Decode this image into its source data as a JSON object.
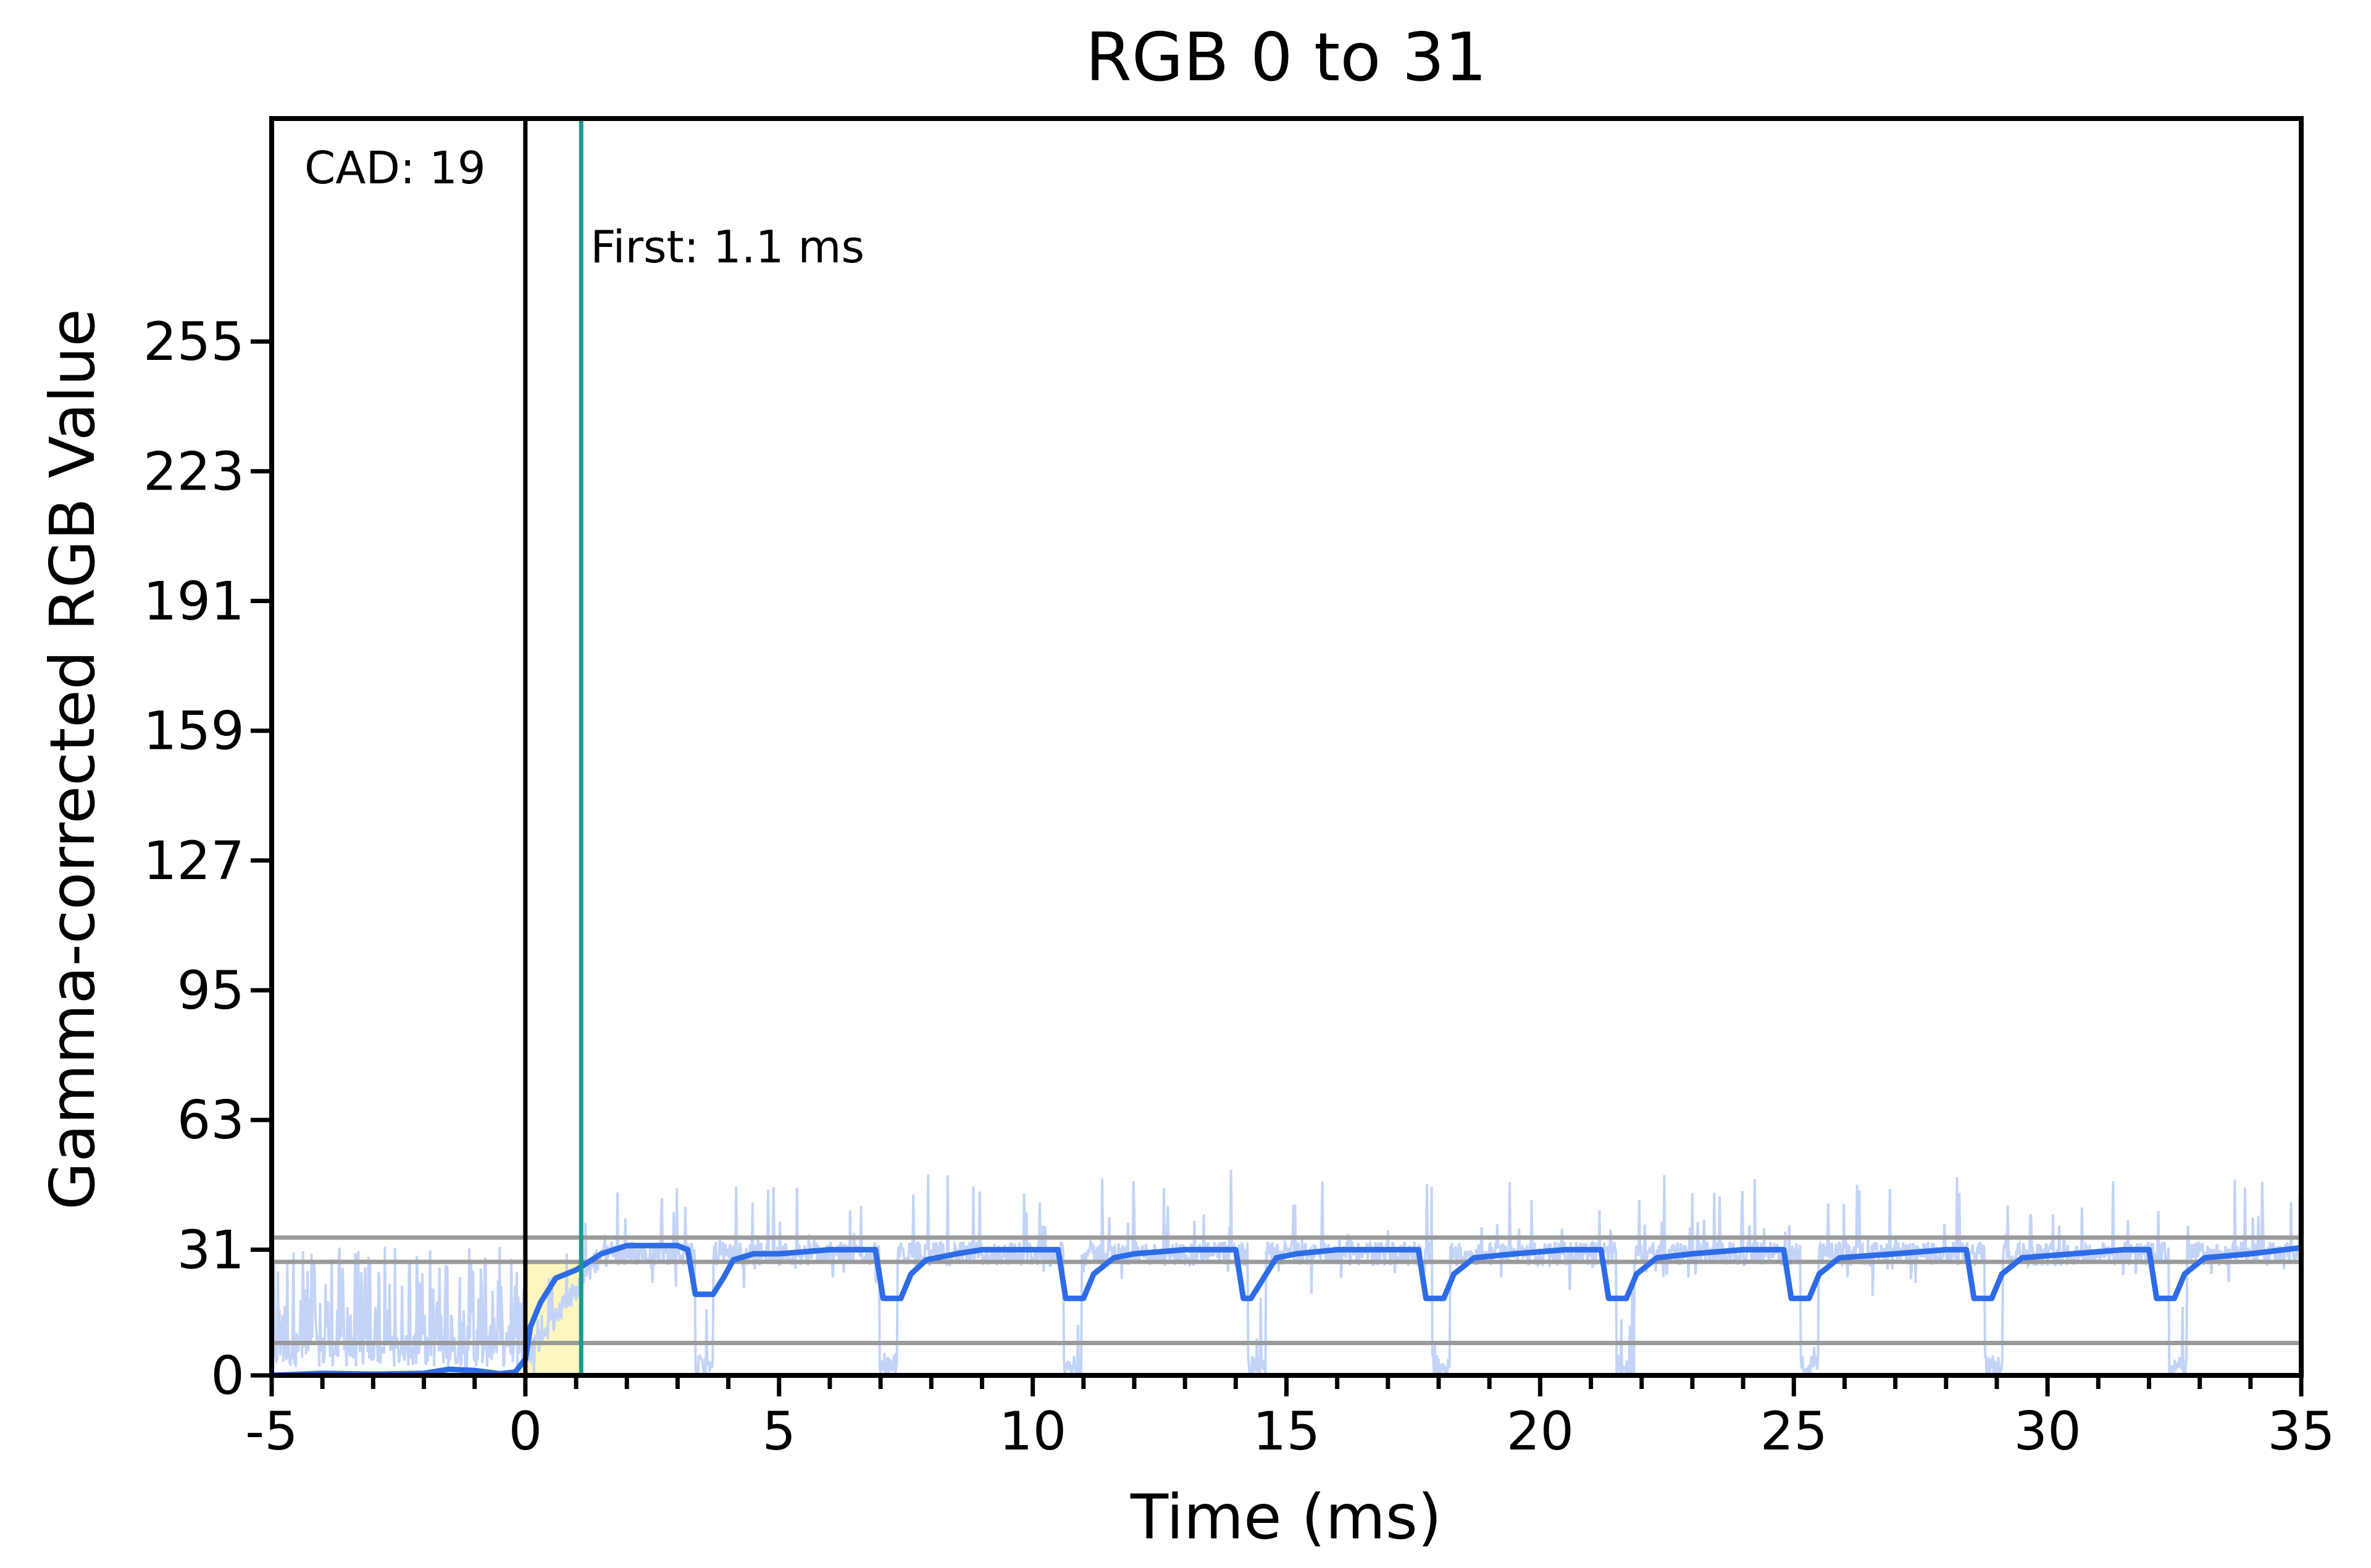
{
  "chart_data": {
    "type": "line",
    "title": "RGB 0 to 31",
    "xlabel": "Time (ms)",
    "ylabel": "Gamma-corrected RGB Value",
    "xlim": [
      -5,
      35
    ],
    "ylim": [
      0,
      310
    ],
    "x_ticks": [
      -5,
      0,
      5,
      10,
      15,
      20,
      25,
      30,
      35
    ],
    "x_minor_step": 1,
    "y_ticks": [
      0,
      31,
      63,
      95,
      127,
      159,
      191,
      223,
      255
    ],
    "grid": false,
    "legend": "none",
    "annotations": {
      "cad": "CAD: 19",
      "first": "First: 1.1 ms",
      "first_x": 1.1,
      "start_x": 0
    },
    "reference_lines": [
      34,
      28,
      8
    ],
    "highlight_region": {
      "x0": 0,
      "x1": 1.1,
      "y0": 0,
      "y1": 28
    },
    "flicker": {
      "period": 3.63,
      "first_dip": 3.35,
      "dip_width": 0.35,
      "dip_low": 19
    },
    "series": [
      {
        "role": "smoothed",
        "color": "#2e6be6",
        "x": [
          -5,
          -4,
          -3,
          -2,
          -1.5,
          -1,
          -0.5,
          -0.2,
          0,
          0.1,
          0.3,
          0.6,
          1.0,
          1.5,
          2.0,
          2.5,
          3.0,
          3.2,
          3.35,
          3.7,
          3.9,
          4.1,
          4.5,
          5,
          6,
          6.9,
          7.05,
          7.4,
          7.6,
          7.9,
          8.5,
          9,
          10,
          10.5,
          10.65,
          11.0,
          11.2,
          11.6,
          12,
          13,
          14,
          14.15,
          14.3,
          14.6,
          14.8,
          15.2,
          16,
          17,
          17.6,
          17.75,
          18.1,
          18.3,
          18.7,
          19.5,
          20.5,
          21.2,
          21.35,
          21.7,
          21.9,
          22.3,
          23,
          24,
          24.8,
          24.95,
          25.3,
          25.5,
          25.9,
          27,
          28,
          28.4,
          28.55,
          28.9,
          29.1,
          29.5,
          30.5,
          31.5,
          32.0,
          32.15,
          32.5,
          32.7,
          33.1,
          34,
          35
        ],
        "values": [
          0,
          0.5,
          0.3,
          0.5,
          1.5,
          1.2,
          0.4,
          0.8,
          4,
          12,
          18,
          24,
          26,
          30,
          32,
          32,
          32,
          31,
          20,
          20,
          24,
          28.5,
          30,
          30,
          31,
          31,
          19,
          19,
          25,
          28.5,
          30,
          31,
          31,
          31,
          19,
          19,
          25,
          29,
          30,
          31,
          31,
          19,
          19,
          25,
          29,
          30,
          31,
          31,
          31,
          19,
          19,
          25,
          29,
          30,
          31,
          31,
          19,
          19,
          25,
          29,
          30,
          31,
          31,
          19,
          19,
          25,
          29,
          30,
          31,
          31,
          19,
          19,
          25,
          29,
          30,
          31,
          31,
          19,
          19,
          25,
          29,
          30,
          31.5
        ]
      }
    ]
  }
}
